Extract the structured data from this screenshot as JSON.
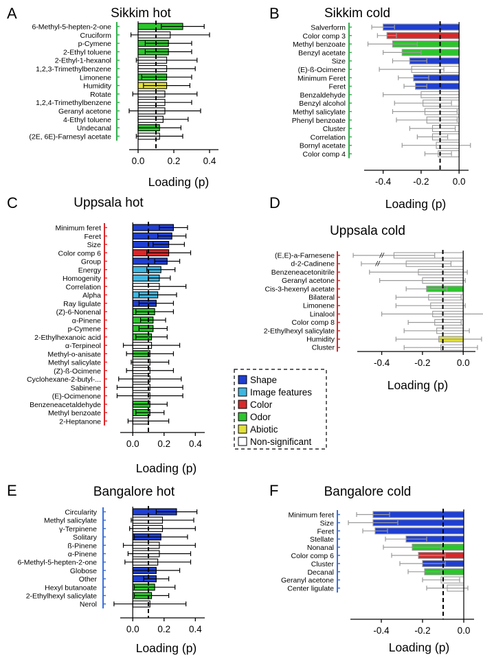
{
  "legend": {
    "entries": [
      {
        "key": "shape",
        "label": "Shape",
        "color": "#1f3fd1"
      },
      {
        "key": "image",
        "label": "Image features",
        "color": "#3fb6e0"
      },
      {
        "key": "color",
        "label": "Color",
        "color": "#d8282a"
      },
      {
        "key": "odor",
        "label": "Odor",
        "color": "#2cc52c"
      },
      {
        "key": "abiotic",
        "label": "Abiotic",
        "color": "#e2e03a"
      },
      {
        "key": "ns",
        "label": "Non-significant",
        "color": "#ffffff"
      }
    ]
  },
  "chart_data": [
    {
      "id": "A",
      "letter": "A",
      "title": "Sikkim hot",
      "type": "bar",
      "xlabel": "Loading (p)",
      "xlim": [
        -0.05,
        0.45
      ],
      "xticks": [
        "0.0",
        "0.2",
        "0.4"
      ],
      "xtick_values": [
        0,
        0.2,
        0.4
      ],
      "threshold": 0.1,
      "bracket_color": "#2fb04a",
      "categories": [
        "6-Methyl-5-hepten-2-one",
        "Cruciform",
        "p-Cymene",
        "2-Ethyl toluene",
        "2-Ethyl-1-hexanol",
        "1,2,3-Trimethylbenzene",
        "Limonene",
        "Humidity",
        "Rotate",
        "1,2,4-Trimethylbenzene",
        "Geranyl acetone",
        "4-Ethyl toluene",
        "Undecanal",
        "(2E, 6E)-Farnesyl acetate"
      ],
      "values": [
        0.25,
        0.18,
        0.17,
        0.17,
        0.16,
        0.16,
        0.16,
        0.16,
        0.15,
        0.15,
        0.15,
        0.14,
        0.12,
        0.12
      ],
      "errors": [
        0.12,
        0.22,
        0.13,
        0.13,
        0.17,
        0.16,
        0.14,
        0.13,
        0.18,
        0.15,
        0.2,
        0.14,
        0.12,
        0.13
      ],
      "groups": [
        "odor",
        "ns",
        "odor",
        "odor",
        "ns",
        "ns",
        "odor",
        "abiotic",
        "ns",
        "ns",
        "ns",
        "ns",
        "odor",
        "ns"
      ]
    },
    {
      "id": "B",
      "letter": "B",
      "title": "Sikkim cold",
      "type": "bar",
      "xlabel": "Loading (p)",
      "xlim": [
        -0.5,
        0.05
      ],
      "xticks": [
        "-0.4",
        "-0.2",
        "0.0"
      ],
      "xtick_values": [
        -0.4,
        -0.2,
        0
      ],
      "threshold": -0.1,
      "bracket_color": "#2fb04a",
      "categories": [
        "Salverform",
        "Color comp 3",
        "Methyl benzoate",
        "Benzyl acetate",
        "Size",
        "(E)-ß-Ocimene",
        "Minimum Feret",
        "Feret",
        "Benzaldehyde",
        "Benzyl alcohol",
        "Methyl salicylate",
        "Phenyl benzoate",
        "Cluster",
        "Correlation",
        "Bornyl acetate",
        "Color comp 4"
      ],
      "values": [
        -0.4,
        -0.38,
        -0.35,
        -0.3,
        -0.26,
        -0.25,
        -0.24,
        -0.23,
        -0.2,
        -0.19,
        -0.18,
        -0.17,
        -0.14,
        -0.14,
        -0.12,
        -0.11
      ],
      "errors": [
        0.06,
        0.05,
        0.13,
        0.1,
        0.09,
        0.17,
        0.08,
        0.06,
        0.2,
        0.15,
        0.17,
        0.16,
        0.12,
        0.08,
        0.18,
        0.07
      ],
      "groups": [
        "shape",
        "color",
        "odor",
        "odor",
        "shape",
        "ns",
        "shape",
        "shape",
        "ns",
        "ns",
        "ns",
        "ns",
        "ns",
        "ns",
        "ns",
        "ns"
      ]
    },
    {
      "id": "C",
      "letter": "C",
      "title": "Uppsala hot",
      "type": "bar",
      "xlabel": "Loading (p)",
      "xlim": [
        -0.08,
        0.46
      ],
      "xticks": [
        "0.0",
        "0.2",
        "0.4"
      ],
      "xtick_values": [
        0,
        0.2,
        0.4
      ],
      "threshold": 0.1,
      "bracket_color": "#d8282a",
      "categories": [
        "Minimum feret",
        "Feret",
        "Size",
        "Color comp 6",
        "Group",
        "Energy",
        "Homogenity",
        "Correlation",
        "Alpha",
        "Ray ligulate",
        "(Z)-6-Nonenal",
        "α-Pinene",
        "p-Cymene",
        "2-Ethylhexanoic acid",
        "α-Terpineol",
        "Methyl-o-anisate",
        "Methyl salicylate",
        "(Z)-ß-Ocimene",
        "Cyclohexane-2-butyl-...",
        "Sabinene",
        "(E)-Ocimenone",
        "Benzeneacetaldehyde",
        "Methyl benzoate",
        "2-Heptanone"
      ],
      "values": [
        0.26,
        0.25,
        0.23,
        0.23,
        0.22,
        0.18,
        0.17,
        0.17,
        0.16,
        0.15,
        0.14,
        0.13,
        0.13,
        0.12,
        0.12,
        0.11,
        0.11,
        0.11,
        0.11,
        0.11,
        0.11,
        0.11,
        0.11,
        0.1
      ],
      "errors": [
        0.09,
        0.09,
        0.1,
        0.14,
        0.08,
        0.09,
        0.07,
        0.17,
        0.12,
        0.11,
        0.12,
        0.08,
        0.09,
        0.1,
        0.18,
        0.15,
        0.12,
        0.15,
        0.2,
        0.21,
        0.21,
        0.11,
        0.09,
        0.13
      ],
      "groups": [
        "shape",
        "shape",
        "shape",
        "color",
        "shape",
        "image",
        "image",
        "ns",
        "image",
        "shape",
        "odor",
        "odor",
        "odor",
        "odor",
        "ns",
        "odor",
        "ns",
        "ns",
        "ns",
        "ns",
        "ns",
        "odor",
        "odor",
        "ns"
      ]
    },
    {
      "id": "D",
      "letter": "D",
      "title": "Uppsala cold",
      "type": "bar",
      "xlabel": "Loading (p)",
      "xlim": [
        -0.52,
        0.06
      ],
      "xticks": [
        "-0.4",
        "-0.2",
        "0.0"
      ],
      "xtick_values": [
        -0.4,
        -0.2,
        0
      ],
      "threshold": -0.1,
      "bracket_color": "#d8282a",
      "categories": [
        "(E,E)-a-Farnesene",
        "d-2-Cadinene",
        "Benzeneacetonitrile",
        "Geranyl acetone",
        "Cis-3-hexenyl acetate",
        "Bilateral",
        "Limonene",
        "Linalool",
        "Color comp 8",
        "2-Ethylhexyl salicylate",
        "Humidity",
        "Cluster"
      ],
      "values": [
        -0.34,
        -0.28,
        -0.22,
        -0.2,
        -0.18,
        -0.17,
        -0.16,
        -0.15,
        -0.14,
        -0.13,
        -0.12,
        -0.11
      ],
      "errors": [
        0.2,
        0.22,
        0.24,
        0.21,
        0.1,
        0.16,
        0.17,
        0.25,
        0.13,
        0.16,
        0.21,
        0.18
      ],
      "groups": [
        "ns",
        "ns",
        "ns",
        "ns",
        "odor",
        "ns",
        "ns",
        "ns",
        "ns",
        "ns",
        "abiotic",
        "ns"
      ],
      "break_marks": [
        "//",
        "//"
      ]
    },
    {
      "id": "E",
      "letter": "E",
      "title": "Bangalore hot",
      "type": "bar",
      "xlabel": "Loading (p)",
      "xlim": [
        -0.08,
        0.46
      ],
      "xticks": [
        "0.0",
        "0.2",
        "0.4"
      ],
      "xtick_values": [
        0,
        0.2,
        0.4
      ],
      "threshold": 0.1,
      "bracket_color": "#3b6fd8",
      "categories": [
        "Circularity",
        "Methyl salicylate",
        "γ-Terpinene",
        "Solitary",
        "ß-Pinene",
        "α-Pinene",
        "6-Methyl-5-hepten-2-one",
        "Globose",
        "Other",
        "Hexyl butanoate",
        "2-Ethylhexyl salicylate",
        "Nerol"
      ],
      "values": [
        0.28,
        0.19,
        0.19,
        0.18,
        0.17,
        0.17,
        0.16,
        0.15,
        0.15,
        0.14,
        0.12,
        0.11
      ],
      "errors": [
        0.13,
        0.2,
        0.21,
        0.17,
        0.23,
        0.2,
        0.21,
        0.15,
        0.08,
        0.13,
        0.11,
        0.23
      ],
      "groups": [
        "shape",
        "ns",
        "ns",
        "shape",
        "ns",
        "ns",
        "ns",
        "shape",
        "shape",
        "odor",
        "odor",
        "ns"
      ]
    },
    {
      "id": "F",
      "letter": "F",
      "title": "Bangalore cold",
      "type": "bar",
      "xlabel": "Loading (p)",
      "xlim": [
        -0.55,
        0.05
      ],
      "xticks": [
        "-0.4",
        "-0.2",
        "0.0"
      ],
      "xtick_values": [
        -0.4,
        -0.2,
        0
      ],
      "threshold": -0.1,
      "bracket_color": "#3b6fd8",
      "categories": [
        "Minimum feret",
        "Size",
        "Feret",
        "Stellate",
        "Nonanal",
        "Color comp 6",
        "Cluster",
        "Decanal",
        "Geranyl acetone",
        "Center ligulate"
      ],
      "values": [
        -0.44,
        -0.44,
        -0.43,
        -0.28,
        -0.25,
        -0.22,
        -0.2,
        -0.19,
        -0.11,
        -0.08
      ],
      "errors": [
        0.08,
        0.12,
        0.06,
        0.1,
        0.14,
        0.13,
        0.11,
        0.08,
        0.09,
        0.1
      ],
      "groups": [
        "shape",
        "shape",
        "shape",
        "shape",
        "odor",
        "color",
        "shape",
        "odor",
        "ns",
        "ns"
      ]
    }
  ]
}
